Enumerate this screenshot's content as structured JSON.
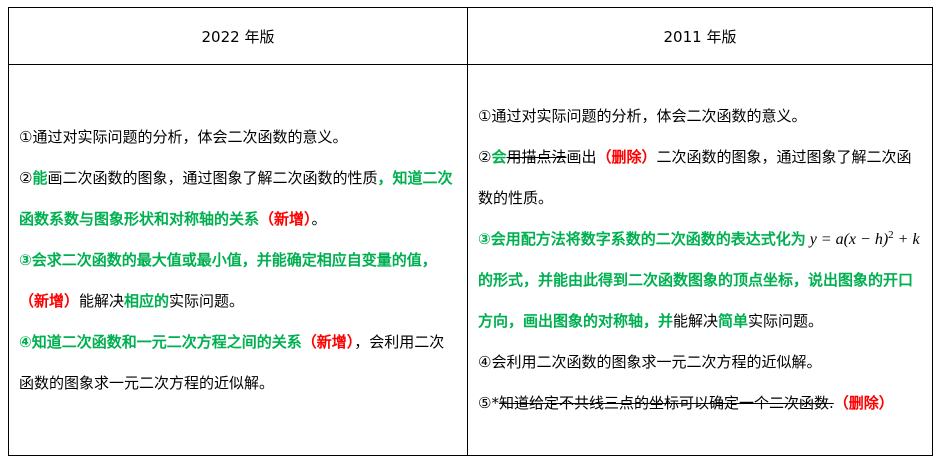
{
  "colors": {
    "normal": "#000000",
    "green": "#00b050",
    "red": "#ff0000"
  },
  "table": {
    "headers": [
      "2022 年版",
      "2011 年版"
    ],
    "columns": [
      {
        "paragraphs": [
          {
            "segments": [
              {
                "text": "①通过对实际问题的分析，体会二次函数的意义。",
                "style": "n"
              }
            ]
          },
          {
            "segments": [
              {
                "text": "②",
                "style": "n"
              },
              {
                "text": "能",
                "style": "g"
              },
              {
                "text": "画二次函数的图象，通过图象了解二次函数的性质",
                "style": "n"
              },
              {
                "text": "，知道二次函数系数与图象形状和对称轴的关系",
                "style": "g"
              },
              {
                "text": "（新增）",
                "style": "r"
              },
              {
                "text": "。",
                "style": "n"
              }
            ]
          },
          {
            "segments": [
              {
                "text": "③会求二次函数的最大值或最小值，并能确定相应自变量的值，",
                "style": "g"
              },
              {
                "text": "（新增）",
                "style": "r"
              },
              {
                "text": "能解决",
                "style": "n"
              },
              {
                "text": "相应的",
                "style": "g"
              },
              {
                "text": "实际问题。",
                "style": "n"
              }
            ]
          },
          {
            "segments": [
              {
                "text": "④知道二次函数和一元二次方程之间的关系",
                "style": "g"
              },
              {
                "text": "（新增）",
                "style": "r"
              },
              {
                "text": "，会利用二次函数的图象求一元二次方程的近似解。",
                "style": "n"
              }
            ]
          }
        ]
      },
      {
        "paragraphs": [
          {
            "segments": [
              {
                "text": "①通过对实际问题的分析，体会二次函数的意义。",
                "style": "n"
              }
            ]
          },
          {
            "segments": [
              {
                "text": "②",
                "style": "n"
              },
              {
                "text": "会",
                "style": "g"
              },
              {
                "text": "用描点法",
                "style": "s"
              },
              {
                "text": "画出",
                "style": "n"
              },
              {
                "text": "（删除）",
                "style": "r"
              },
              {
                "text": "二次函数的图象，通过图象了解二次函数的性质。",
                "style": "n"
              }
            ]
          },
          {
            "segments": [
              {
                "text": "③会用配方法将数字系数的二次函数的表达式化为",
                "style": "g"
              },
              {
                "text": " y = a(x − h)",
                "style": "math"
              },
              {
                "text": "2",
                "style": "sup"
              },
              {
                "text": " + k ",
                "style": "math"
              },
              {
                "text": "的形式，并能由此得到二次函数图象的顶点坐标，说出图象的开口方向，画出图象的对称轴，并",
                "style": "g"
              },
              {
                "text": "能解决",
                "style": "n"
              },
              {
                "text": "简单",
                "style": "g"
              },
              {
                "text": "实际问题。",
                "style": "n"
              }
            ]
          },
          {
            "segments": [
              {
                "text": "④会利用二次函数的图象求一元二次方程的近似解。",
                "style": "n"
              }
            ]
          },
          {
            "segments": [
              {
                "text": "⑤*",
                "style": "n"
              },
              {
                "text": "知道给定不共线三点的坐标可以确定一个二次函数.",
                "style": "s"
              },
              {
                "text": "（删除）",
                "style": "r"
              }
            ]
          }
        ]
      }
    ]
  }
}
